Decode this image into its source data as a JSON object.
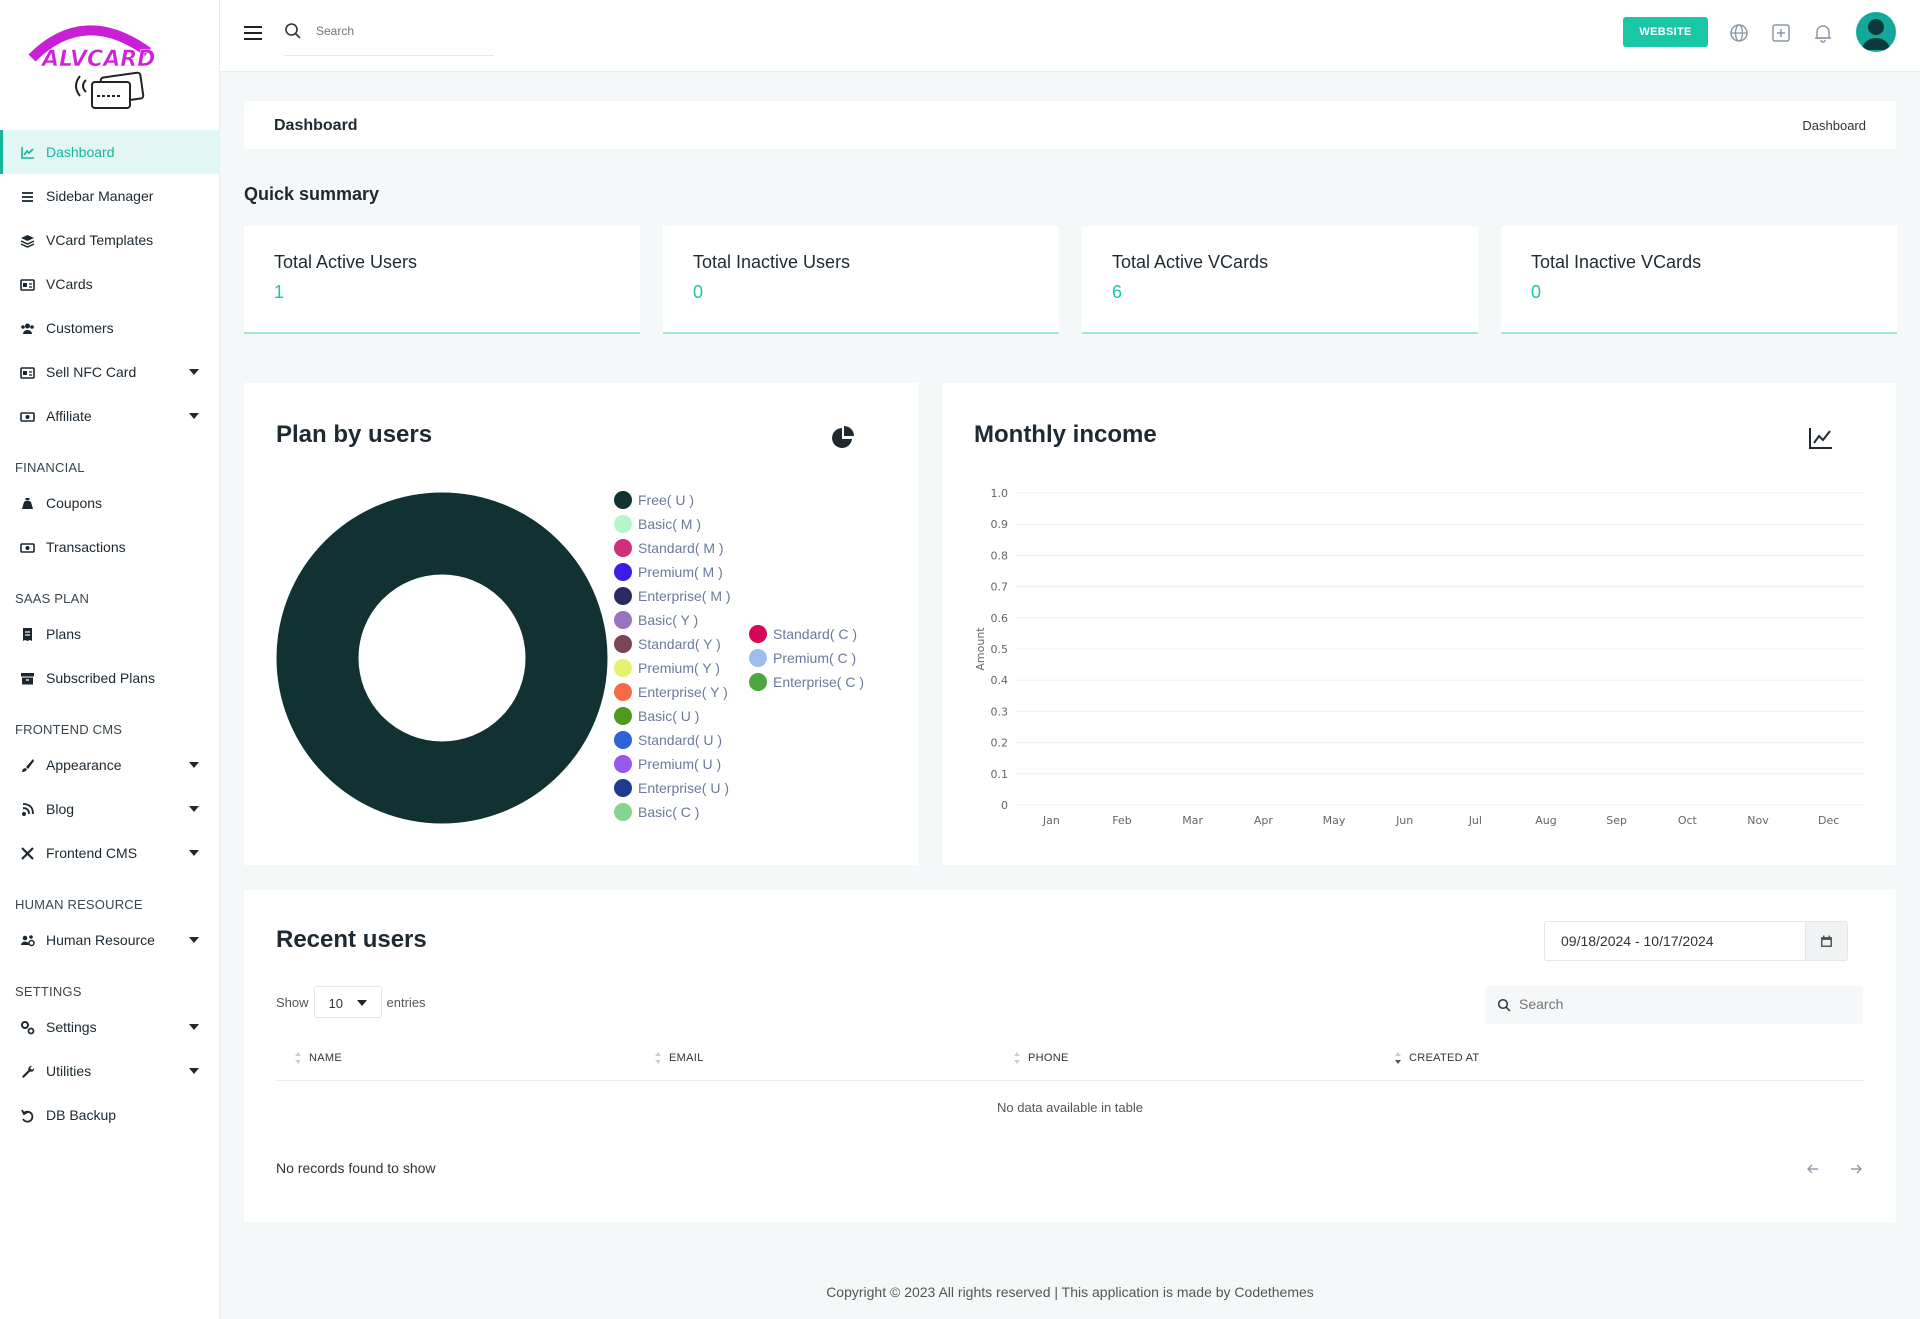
{
  "brand": {
    "logo_text": "ALVCARD"
  },
  "sidebar": {
    "items": [
      {
        "label": "Dashboard",
        "icon": "chart-line-icon",
        "active": true,
        "caret": false
      },
      {
        "label": "Sidebar Manager",
        "icon": "list-icon",
        "caret": false
      },
      {
        "label": "VCard Templates",
        "icon": "layers-icon",
        "caret": false
      },
      {
        "label": "VCards",
        "icon": "id-card-icon",
        "caret": false
      },
      {
        "label": "Customers",
        "icon": "users-icon",
        "caret": false
      },
      {
        "label": "Sell NFC Card",
        "icon": "id-card-icon",
        "caret": true
      },
      {
        "label": "Affiliate",
        "icon": "money-icon",
        "caret": true
      }
    ],
    "sections": [
      {
        "title": "FINANCIAL",
        "items": [
          {
            "label": "Coupons",
            "icon": "money-bag-icon",
            "caret": false
          },
          {
            "label": "Transactions",
            "icon": "money-icon",
            "caret": false
          }
        ]
      },
      {
        "title": "SAAS PLAN",
        "items": [
          {
            "label": "Plans",
            "icon": "receipt-icon",
            "caret": false
          },
          {
            "label": "Subscribed Plans",
            "icon": "archive-icon",
            "caret": false
          }
        ]
      },
      {
        "title": "FRONTEND CMS",
        "items": [
          {
            "label": "Appearance",
            "icon": "brush-icon",
            "caret": true
          },
          {
            "label": "Blog",
            "icon": "blog-icon",
            "caret": true
          },
          {
            "label": "Frontend CMS",
            "icon": "tools-icon",
            "caret": true
          }
        ]
      },
      {
        "title": "HUMAN RESOURCE",
        "items": [
          {
            "label": "Human Resource",
            "icon": "users-gear-icon",
            "caret": true
          }
        ]
      },
      {
        "title": "SETTINGS",
        "items": [
          {
            "label": "Settings",
            "icon": "gears-icon",
            "caret": true
          },
          {
            "label": "Utilities",
            "icon": "wrench-icon",
            "caret": true
          },
          {
            "label": "DB Backup",
            "icon": "undo-icon",
            "caret": false
          }
        ]
      }
    ]
  },
  "topbar": {
    "search_placeholder": "Search",
    "website_label": "WEBSITE"
  },
  "breadcrumb": {
    "title": "Dashboard",
    "current": "Dashboard"
  },
  "quick_summary": {
    "title": "Quick summary",
    "cards": [
      {
        "label": "Total Active Users",
        "value": "1"
      },
      {
        "label": "Total Inactive Users",
        "value": "0"
      },
      {
        "label": "Total Active VCards",
        "value": "6"
      },
      {
        "label": "Total Inactive VCards",
        "value": "0"
      }
    ]
  },
  "plan_chart": {
    "title": "Plan by users",
    "legend": [
      {
        "label": "Free( U )",
        "color": "#123133"
      },
      {
        "label": "Basic( M )",
        "color": "#b7f5c8"
      },
      {
        "label": "Standard( M )",
        "color": "#d22f7a"
      },
      {
        "label": "Premium( M )",
        "color": "#3a1ee8"
      },
      {
        "label": "Enterprise( M )",
        "color": "#2c2a63"
      },
      {
        "label": "Basic( Y )",
        "color": "#9b72c0"
      },
      {
        "label": "Standard( Y )",
        "color": "#7d4356"
      },
      {
        "label": "Premium( Y )",
        "color": "#e6ef6e"
      },
      {
        "label": "Enterprise( Y )",
        "color": "#f36a44"
      },
      {
        "label": "Basic( U )",
        "color": "#4f9b22"
      },
      {
        "label": "Standard( U )",
        "color": "#2c63d6"
      },
      {
        "label": "Premium( U )",
        "color": "#9957ec"
      },
      {
        "label": "Enterprise( U )",
        "color": "#1f3a8f"
      },
      {
        "label": "Basic( C )",
        "color": "#85d490"
      },
      {
        "label": "Standard( C )",
        "color": "#d6075a"
      },
      {
        "label": "Premium( C )",
        "color": "#9fbcee"
      },
      {
        "label": "Enterprise( C )",
        "color": "#4ea63f"
      }
    ]
  },
  "chart_data": {
    "type": "line",
    "title": "Monthly income",
    "ylabel": "Amount",
    "xlabel": "",
    "categories": [
      "Jan",
      "Feb",
      "Mar",
      "Apr",
      "May",
      "Jun",
      "Jul",
      "Aug",
      "Sep",
      "Oct",
      "Nov",
      "Dec"
    ],
    "yticks": [
      "0",
      "0.1",
      "0.2",
      "0.3",
      "0.4",
      "0.5",
      "0.6",
      "0.7",
      "0.8",
      "0.9",
      "1.0"
    ],
    "ylim": [
      0,
      1
    ],
    "series": [],
    "grid": true
  },
  "recent_users": {
    "title": "Recent users",
    "date_range": "09/18/2024 - 10/17/2024",
    "show_label": "Show",
    "entries_value": "10",
    "entries_label": "entries",
    "search_placeholder": "Search",
    "columns": [
      "NAME",
      "EMAIL",
      "PHONE",
      "CREATED AT"
    ],
    "empty_message": "No data available in table",
    "records_message": "No records found to show"
  },
  "footer": {
    "text": "Copyright © 2023 All rights reserved | This application is made by Codethemes"
  }
}
